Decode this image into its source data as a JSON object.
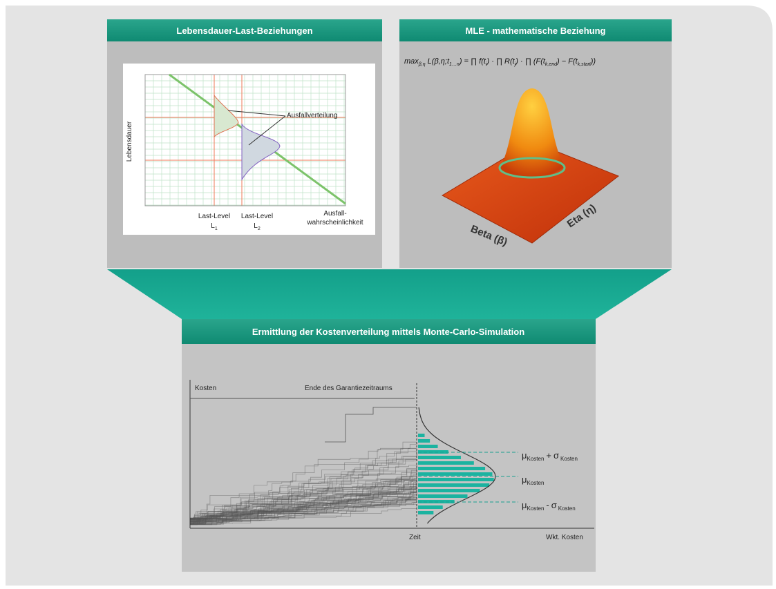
{
  "panels": {
    "life": {
      "title": "Lebensdauer-Last-Beziehungen",
      "y_label": "Lebensdauer",
      "dist_label": "Ausfallverteilung",
      "level1": {
        "text": "Last-Level",
        "symbol": "L",
        "index": "1"
      },
      "level2": {
        "text": "Last-Level",
        "symbol": "L",
        "index": "2"
      },
      "prob_label": [
        "Ausfall-",
        "wahrscheinlichkeit"
      ]
    },
    "mle": {
      "title": "MLE - mathematische Beziehung",
      "formula": [
        {
          "text": "max",
          "sub": "β,η"
        },
        {
          "text": " L(β,η;t",
          "sub": "1…n"
        },
        {
          "text": ") = ∏ f(t",
          "sub": "i"
        },
        {
          "text": ") · ∏ R(t",
          "sub": "j"
        },
        {
          "text": ") · ∏ (F(t",
          "sub": "k,end"
        },
        {
          "text": ") − F(t",
          "sub": "k,start"
        },
        {
          "text": "))"
        }
      ],
      "beta": "Beta (β)",
      "eta": "Eta (η)"
    },
    "mc": {
      "title": "Ermittlung der Kostenverteilung mittels Monte-Carlo-Simulation",
      "cost": "Kosten",
      "end": "Ende des Garantiezeitraums",
      "time": "Zeit",
      "prob": "Wkt. Kosten",
      "upper": {
        "mu": "μ",
        "mu_sub": "Kosten",
        "op": "+",
        "sigma": "σ",
        "sigma_sub": "Kosten"
      },
      "mean": {
        "mu": "μ",
        "mu_sub": "Kosten"
      },
      "lower": {
        "mu": "μ",
        "mu_sub": "Kosten",
        "op": "-",
        "sigma": "σ",
        "sigma_sub": "Kosten"
      }
    }
  }
}
